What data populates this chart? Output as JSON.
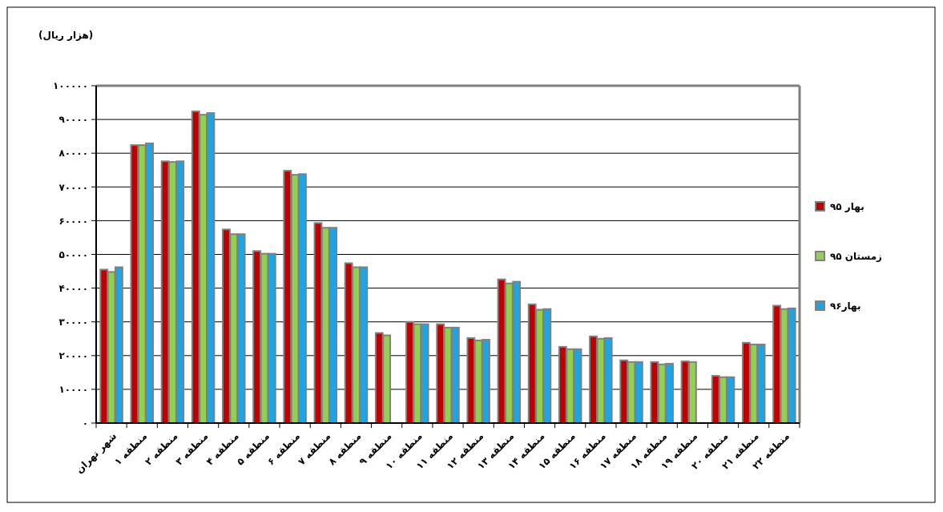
{
  "chart_data": {
    "type": "bar",
    "ylabel": "(هزار ریال)",
    "categories": [
      "شهر تهران",
      "منطقه ۱",
      "منطقه ۲",
      "منطقه ۳",
      "منطقه ۴",
      "منطقه ۵",
      "منطقه ۶",
      "منطقه ۷",
      "منطقه ۸",
      "منطقه ۹",
      "منطقه ۱۰",
      "منطقه ۱۱",
      "منطقه ۱۲",
      "منطقه ۱۳",
      "منطقه ۱۴",
      "منطقه ۱۵",
      "منطقه ۱۶",
      "منطقه ۱۷",
      "منطقه ۱۸",
      "منطقه ۱۹",
      "منطقه ۲۰",
      "منطقه ۲۱",
      "منطقه ۲۲"
    ],
    "series": [
      {
        "name": "بهار ۹۵",
        "color": "#c00000",
        "values": [
          45500,
          82400,
          77600,
          92400,
          57400,
          51000,
          74800,
          59300,
          47400,
          26700,
          30000,
          29300,
          25200,
          42600,
          35200,
          22600,
          25700,
          18600,
          18100,
          18300,
          14000,
          23800,
          34800
        ]
      },
      {
        "name": "زمستان ۹۵",
        "color": "#92d050",
        "values": [
          44800,
          82400,
          77400,
          91400,
          56000,
          50200,
          73600,
          57900,
          46200,
          26000,
          29300,
          28300,
          24500,
          41400,
          33600,
          21900,
          25000,
          18100,
          17400,
          18100,
          13600,
          23300,
          33800
        ]
      },
      {
        "name": "بهار۹۶",
        "color": "#1aa6e6",
        "values": [
          46200,
          82900,
          77600,
          91900,
          56000,
          50200,
          73800,
          57900,
          46200,
          null,
          29300,
          28300,
          24700,
          41900,
          33800,
          21900,
          25200,
          18100,
          17600,
          null,
          13600,
          23300,
          34000
        ]
      }
    ],
    "ylim": [
      0,
      100000
    ],
    "yticks": [
      {
        "value": 0,
        "label": "۰"
      },
      {
        "value": 10000,
        "label": "۱۰۰۰۰"
      },
      {
        "value": 20000,
        "label": "۲۰۰۰۰"
      },
      {
        "value": 30000,
        "label": "۳۰۰۰۰"
      },
      {
        "value": 40000,
        "label": "۴۰۰۰۰"
      },
      {
        "value": 50000,
        "label": "۵۰۰۰۰"
      },
      {
        "value": 60000,
        "label": "۶۰۰۰۰"
      },
      {
        "value": 70000,
        "label": "۷۰۰۰۰"
      },
      {
        "value": 80000,
        "label": "۸۰۰۰۰"
      },
      {
        "value": 90000,
        "label": "۹۰۰۰۰"
      },
      {
        "value": 100000,
        "label": "۱۰۰۰۰۰"
      }
    ],
    "grid": "y",
    "legend": "right"
  }
}
